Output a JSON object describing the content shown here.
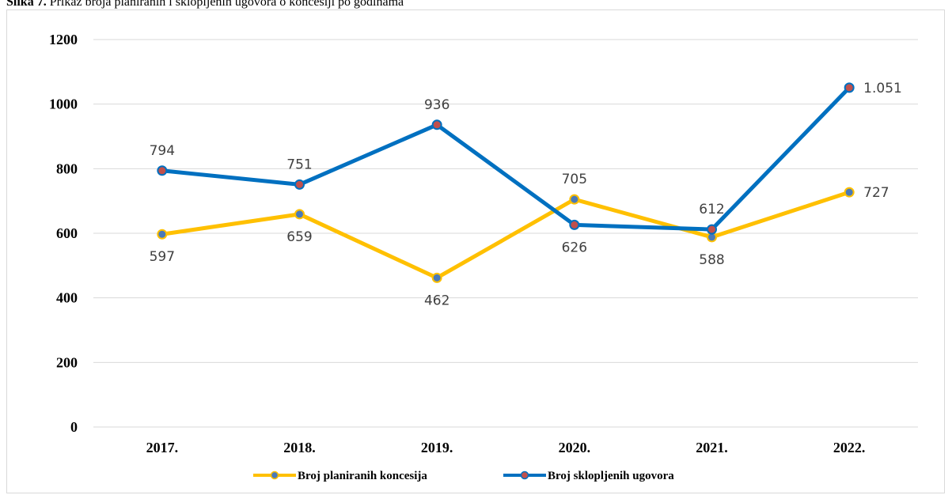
{
  "caption": {
    "prefix": "Slika 7.",
    "text": " Prikaz broja planiranih i sklopljenih ugovora o koncesiji po godinama"
  },
  "chart_data": {
    "type": "line",
    "categories": [
      "2017.",
      "2018.",
      "2019.",
      "2020.",
      "2021.",
      "2022."
    ],
    "ylim": [
      0,
      1200
    ],
    "yticks": [
      0,
      200,
      400,
      600,
      800,
      1000,
      1200
    ],
    "grid": true,
    "legend_position": "bottom",
    "series": [
      {
        "name": "Broj planiranih koncesija",
        "values": [
          597,
          659,
          462,
          705,
          588,
          727
        ],
        "labels": [
          "597",
          "659",
          "462",
          "705",
          "588",
          "727"
        ],
        "color": "#FFC000",
        "marker_color": "#4a7ab8"
      },
      {
        "name": "Broj sklopljenih ugovora",
        "values": [
          794,
          751,
          936,
          626,
          612,
          1051
        ],
        "labels": [
          "794",
          "751",
          "936",
          "626",
          "612",
          "1.051"
        ],
        "color": "#0070C0",
        "marker_color": "#C0504D"
      }
    ]
  }
}
